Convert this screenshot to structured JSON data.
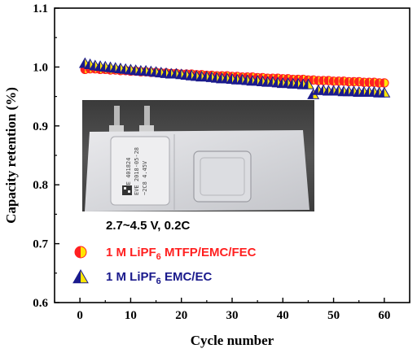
{
  "chart_data": {
    "type": "scatter",
    "xlabel": "Cycle number",
    "ylabel": "Capacity retention (%)",
    "xlim": [
      -5,
      65
    ],
    "ylim": [
      0.6,
      1.1
    ],
    "xticks": [
      0,
      10,
      20,
      30,
      40,
      50,
      60
    ],
    "yticks": [
      0.6,
      0.7,
      0.8,
      0.9,
      1.0,
      1.1
    ],
    "xtick_labels": [
      "0",
      "10",
      "20",
      "30",
      "40",
      "50",
      "60"
    ],
    "ytick_labels": [
      "0.6",
      "0.7",
      "0.8",
      "0.9",
      "1.0",
      "1.1"
    ],
    "grid": false,
    "legend_position": "bottom-left",
    "condition_note": "2.7~4.5 V, 0.2C",
    "series": [
      {
        "name": "1 M LiPF6 MTFP/EMC/FEC",
        "name_prefix": "1 M LiPF",
        "name_subscript": "6",
        "name_suffix": " MTFP/EMC/FEC",
        "marker": "circle-half",
        "color_primary": "#ff2020",
        "color_secondary": "#ffe600",
        "x": [
          1,
          2,
          3,
          4,
          5,
          6,
          7,
          8,
          9,
          10,
          11,
          12,
          13,
          14,
          15,
          16,
          17,
          18,
          19,
          20,
          21,
          22,
          23,
          24,
          25,
          26,
          27,
          28,
          29,
          30,
          31,
          32,
          33,
          34,
          35,
          36,
          37,
          38,
          39,
          40,
          41,
          42,
          43,
          44,
          45,
          46,
          47,
          48,
          49,
          50,
          51,
          52,
          53,
          54,
          55,
          56,
          57,
          58,
          59,
          60
        ],
        "y": [
          0.996,
          0.997,
          0.997,
          0.996,
          0.996,
          0.995,
          0.995,
          0.994,
          0.994,
          0.993,
          0.993,
          0.992,
          0.992,
          0.991,
          0.991,
          0.99,
          0.99,
          0.989,
          0.989,
          0.988,
          0.988,
          0.988,
          0.987,
          0.987,
          0.986,
          0.986,
          0.985,
          0.985,
          0.985,
          0.984,
          0.984,
          0.983,
          0.983,
          0.983,
          0.982,
          0.982,
          0.981,
          0.981,
          0.981,
          0.98,
          0.98,
          0.979,
          0.979,
          0.979,
          0.978,
          0.978,
          0.977,
          0.977,
          0.977,
          0.976,
          0.976,
          0.976,
          0.975,
          0.975,
          0.975,
          0.974,
          0.974,
          0.974,
          0.973,
          0.973
        ]
      },
      {
        "name": "1 M LiPF6 EMC/EC",
        "name_prefix": "1 M LiPF",
        "name_subscript": "6",
        "name_suffix": " EMC/EC",
        "marker": "triangle-half",
        "color_primary": "#1a1a8c",
        "color_secondary": "#ffe600",
        "x": [
          1,
          2,
          3,
          4,
          5,
          6,
          7,
          8,
          9,
          10,
          11,
          12,
          13,
          14,
          15,
          16,
          17,
          18,
          19,
          20,
          21,
          22,
          23,
          24,
          25,
          26,
          27,
          28,
          29,
          30,
          31,
          32,
          33,
          34,
          35,
          36,
          37,
          38,
          39,
          40,
          41,
          42,
          43,
          44,
          45,
          46,
          47,
          48,
          49,
          50,
          51,
          52,
          53,
          54,
          55,
          56,
          57,
          58,
          59,
          60
        ],
        "y": [
          1.006,
          1.004,
          1.002,
          1.001,
          1.0,
          0.999,
          0.998,
          0.997,
          0.996,
          0.995,
          0.994,
          0.993,
          0.993,
          0.992,
          0.991,
          0.99,
          0.989,
          0.988,
          0.988,
          0.987,
          0.986,
          0.985,
          0.984,
          0.983,
          0.983,
          0.982,
          0.981,
          0.98,
          0.98,
          0.979,
          0.978,
          0.978,
          0.977,
          0.976,
          0.976,
          0.975,
          0.974,
          0.974,
          0.973,
          0.972,
          0.972,
          0.971,
          0.971,
          0.97,
          0.97,
          0.953,
          0.96,
          0.96,
          0.959,
          0.959,
          0.959,
          0.958,
          0.958,
          0.958,
          0.957,
          0.957,
          0.957,
          0.957,
          0.956,
          0.956
        ]
      }
    ],
    "inset_photo": {
      "pouch_label_lines": [
        "~EVE 401824",
        "EVE 2018-05-28",
        "~2C8  4.45V"
      ]
    }
  }
}
